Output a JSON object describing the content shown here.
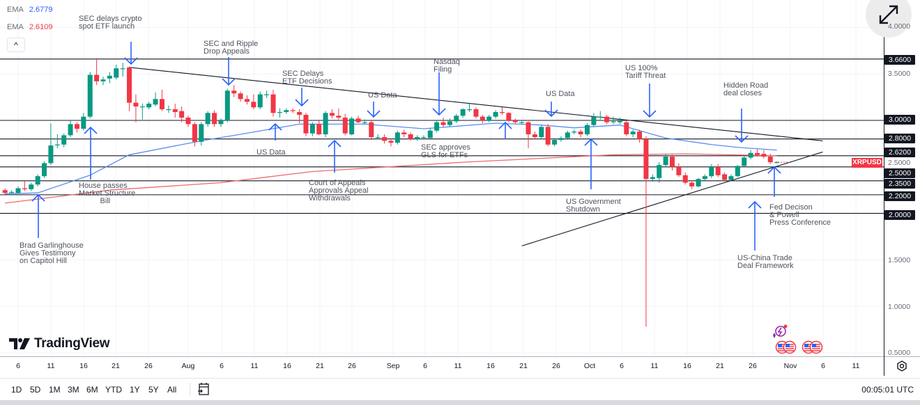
{
  "symbol": "XRPUSD",
  "legend": [
    {
      "label": "EMA",
      "value": "2.6779",
      "color": "#2962ff"
    },
    {
      "label": "EMA",
      "value": "2.6109",
      "color": "#f23645"
    }
  ],
  "collapse_label": "^",
  "logo_text": "TradingView",
  "colors": {
    "up": "#089981",
    "down": "#f23645",
    "ema_fast": "#5b8def",
    "ema_slow": "#f06a6a",
    "arrow": "#2962ff",
    "level": "#131722"
  },
  "price_axis": {
    "gray_ticks": [
      "4.0000",
      "3.5000",
      "2.5000",
      "1.5000",
      "1.0000",
      "0.5000"
    ],
    "level_labels": [
      "3.6600",
      "3.0000",
      "2.8000",
      "2.6200",
      "2.5000",
      "2.3500",
      "2.2000",
      "2.0000"
    ]
  },
  "time_axis": [
    "6",
    "11",
    "16",
    "21",
    "26",
    "Aug",
    "6",
    "11",
    "16",
    "21",
    "26",
    "Sep",
    "6",
    "11",
    "16",
    "21",
    "26",
    "Oct",
    "6",
    "11",
    "16",
    "21",
    "26",
    "Nov",
    "6",
    "11"
  ],
  "annotations": [
    {
      "text": "SEC delays crypto\nspot ETF launch",
      "arrow": "down"
    },
    {
      "text": "SEC and Ripple\nDrop Appeals",
      "arrow": "down"
    },
    {
      "text": "SEC Delays\nETF Decisions",
      "arrow": "down"
    },
    {
      "text": "US Data",
      "arrow": "down"
    },
    {
      "text": "Nasdaq\nFiling",
      "arrow": "down"
    },
    {
      "text": "US Data",
      "arrow": "down"
    },
    {
      "text": "US 100%\nTariff Threat",
      "arrow": "down"
    },
    {
      "text": "Hidden Road\ndeal closes",
      "arrow": "down"
    },
    {
      "text": "US Data",
      "arrow": "up"
    },
    {
      "text": "House passes\nMarket Structure\n          Bill",
      "arrow": "up"
    },
    {
      "text": "Brad Garlinghouse\nGives Testimony\non Capitol Hill",
      "arrow": "up"
    },
    {
      "text": "Court of Appeals\nApprovals Appeal\nWithdrawals",
      "arrow": "up"
    },
    {
      "text": "SEC approves\nGLS for ETFs",
      "arrow": "up"
    },
    {
      "text": "US Government\nShutdown",
      "arrow": "up"
    },
    {
      "text": "US-China Trade\nDeal Framework",
      "arrow": "up"
    },
    {
      "text": "Fed Decison\n& Powell\nPress Conference",
      "arrow": "up"
    }
  ],
  "range_buttons": [
    "1D",
    "5D",
    "1M",
    "3M",
    "6M",
    "YTD",
    "1Y",
    "5Y",
    "All"
  ],
  "clock": "00:05:01 UTC",
  "chart_data": {
    "type": "candlestick",
    "symbol": "XRPUSD",
    "interval": "1D",
    "ylim": [
      0.5,
      4.0
    ],
    "grid": true,
    "candle_fields": [
      "date",
      "open",
      "high",
      "low",
      "close"
    ],
    "candles": [
      [
        "Jul 4",
        2.25,
        2.27,
        2.2,
        2.22
      ],
      [
        "Jul 5",
        2.23,
        2.25,
        2.21,
        2.23
      ],
      [
        "Jul 6",
        2.22,
        2.29,
        2.21,
        2.27
      ],
      [
        "Jul 7",
        2.27,
        2.35,
        2.24,
        2.26
      ],
      [
        "Jul 8",
        2.26,
        2.33,
        2.24,
        2.31
      ],
      [
        "Jul 9",
        2.31,
        2.42,
        2.29,
        2.4
      ],
      [
        "Jul 10",
        2.4,
        2.56,
        2.38,
        2.54
      ],
      [
        "Jul 11",
        2.54,
        2.97,
        2.52,
        2.73
      ],
      [
        "Jul 12",
        2.74,
        2.85,
        2.7,
        2.74
      ],
      [
        "Jul 13",
        2.74,
        2.86,
        2.71,
        2.84
      ],
      [
        "Jul 14",
        2.84,
        3.0,
        2.82,
        2.96
      ],
      [
        "Jul 15",
        2.96,
        2.98,
        2.87,
        2.91
      ],
      [
        "Jul 16",
        2.91,
        3.08,
        2.89,
        3.04
      ],
      [
        "Jul 17",
        3.04,
        3.52,
        3.02,
        3.49
      ],
      [
        "Jul 18",
        3.49,
        3.67,
        3.38,
        3.42
      ],
      [
        "Jul 19",
        3.42,
        3.47,
        3.38,
        3.44
      ],
      [
        "Jul 20",
        3.45,
        3.52,
        3.4,
        3.48
      ],
      [
        "Jul 21",
        3.46,
        3.6,
        3.44,
        3.56
      ],
      [
        "Jul 22",
        3.56,
        3.62,
        3.47,
        3.56
      ],
      [
        "Jul 23",
        3.57,
        3.58,
        3.1,
        3.19
      ],
      [
        "Jul 24",
        3.19,
        3.28,
        2.98,
        3.15
      ],
      [
        "Jul 25",
        3.15,
        3.18,
        3.01,
        3.15
      ],
      [
        "Jul 26",
        3.14,
        3.2,
        3.12,
        3.18
      ],
      [
        "Jul 27",
        3.17,
        3.3,
        3.15,
        3.23
      ],
      [
        "Jul 28",
        3.23,
        3.33,
        3.1,
        3.12
      ],
      [
        "Jul 29",
        3.12,
        3.16,
        3.08,
        3.12
      ],
      [
        "Jul 30",
        3.12,
        3.18,
        3.03,
        3.09
      ],
      [
        "Jul 31",
        3.1,
        3.15,
        2.98,
        3.03
      ],
      [
        "Aug 1",
        3.03,
        3.05,
        2.93,
        2.96
      ],
      [
        "Aug 2",
        2.96,
        2.98,
        2.72,
        2.77
      ],
      [
        "Aug 3",
        2.77,
        2.98,
        2.73,
        2.96
      ],
      [
        "Aug 4",
        2.96,
        3.1,
        2.93,
        3.08
      ],
      [
        "Aug 5",
        3.08,
        3.11,
        2.93,
        2.96
      ],
      [
        "Aug 6",
        2.96,
        3.02,
        2.93,
        3.0
      ],
      [
        "Aug 7",
        3.0,
        3.34,
        2.98,
        3.32
      ],
      [
        "Aug 8",
        3.32,
        3.38,
        3.25,
        3.29
      ],
      [
        "Aug 9",
        3.29,
        3.31,
        3.2,
        3.23
      ],
      [
        "Aug 10",
        3.23,
        3.27,
        3.17,
        3.2
      ],
      [
        "Aug 11",
        3.2,
        3.28,
        3.12,
        3.14
      ],
      [
        "Aug 12",
        3.14,
        3.31,
        3.12,
        3.28
      ],
      [
        "Aug 13",
        3.28,
        3.32,
        3.24,
        3.28
      ],
      [
        "Aug 14",
        3.28,
        3.33,
        3.04,
        3.08
      ],
      [
        "Aug 15",
        3.09,
        3.13,
        3.03,
        3.09
      ],
      [
        "Aug 16",
        3.09,
        3.13,
        3.07,
        3.11
      ],
      [
        "Aug 17",
        3.11,
        3.13,
        3.08,
        3.1
      ],
      [
        "Aug 18",
        3.09,
        3.12,
        2.97,
        3.06
      ],
      [
        "Aug 19",
        3.06,
        3.08,
        2.83,
        2.86
      ],
      [
        "Aug 20",
        2.86,
        2.98,
        2.83,
        2.96
      ],
      [
        "Aug 21",
        2.96,
        3.0,
        2.84,
        2.85
      ],
      [
        "Aug 22",
        2.85,
        3.1,
        2.82,
        3.08
      ],
      [
        "Aug 23",
        3.08,
        3.12,
        3.02,
        3.05
      ],
      [
        "Aug 24",
        3.05,
        3.13,
        3.01,
        3.03
      ],
      [
        "Aug 25",
        3.03,
        3.07,
        2.84,
        2.86
      ],
      [
        "Aug 26",
        2.85,
        3.04,
        2.84,
        3.02
      ],
      [
        "Aug 27",
        3.02,
        3.05,
        2.97,
        2.98
      ],
      [
        "Aug 28",
        2.98,
        3.01,
        2.96,
        2.98
      ],
      [
        "Aug 29",
        2.98,
        3.0,
        2.79,
        2.82
      ],
      [
        "Aug 30",
        2.82,
        2.85,
        2.8,
        2.82
      ],
      [
        "Aug 31",
        2.82,
        2.85,
        2.75,
        2.78
      ],
      [
        "Sep 1",
        2.78,
        2.8,
        2.72,
        2.76
      ],
      [
        "Sep 2",
        2.76,
        2.89,
        2.74,
        2.87
      ],
      [
        "Sep 3",
        2.87,
        2.9,
        2.82,
        2.85
      ],
      [
        "Sep 4",
        2.85,
        2.87,
        2.78,
        2.8
      ],
      [
        "Sep 5",
        2.8,
        2.84,
        2.78,
        2.82
      ],
      [
        "Sep 6",
        2.82,
        2.84,
        2.8,
        2.82
      ],
      [
        "Sep 7",
        2.81,
        2.92,
        2.8,
        2.89
      ],
      [
        "Sep 8",
        2.89,
        3.0,
        2.87,
        2.98
      ],
      [
        "Sep 9",
        2.98,
        3.03,
        2.93,
        2.95
      ],
      [
        "Sep 10",
        2.95,
        3.02,
        2.93,
        2.99
      ],
      [
        "Sep 11",
        2.99,
        3.07,
        2.97,
        3.05
      ],
      [
        "Sep 12",
        3.05,
        3.13,
        3.03,
        3.12
      ],
      [
        "Sep 13",
        3.12,
        3.18,
        3.09,
        3.12
      ],
      [
        "Sep 14",
        3.12,
        3.14,
        3.02,
        3.04
      ],
      [
        "Sep 15",
        3.04,
        3.06,
        2.97,
        3.0
      ],
      [
        "Sep 16",
        3.0,
        3.06,
        2.98,
        3.04
      ],
      [
        "Sep 17",
        3.04,
        3.11,
        3.02,
        3.09
      ],
      [
        "Sep 18",
        3.09,
        3.14,
        3.06,
        3.08
      ],
      [
        "Sep 19",
        3.08,
        3.09,
        2.98,
        3.0
      ],
      [
        "Sep 20",
        3.0,
        3.02,
        2.96,
        2.98
      ],
      [
        "Sep 21",
        2.98,
        3.0,
        2.96,
        2.98
      ],
      [
        "Sep 22",
        2.98,
        2.99,
        2.7,
        2.85
      ],
      [
        "Sep 23",
        2.85,
        2.88,
        2.8,
        2.82
      ],
      [
        "Sep 24",
        2.82,
        2.95,
        2.8,
        2.93
      ],
      [
        "Sep 25",
        2.93,
        2.96,
        2.72,
        2.74
      ],
      [
        "Sep 26",
        2.74,
        2.81,
        2.72,
        2.79
      ],
      [
        "Sep 27",
        2.79,
        2.83,
        2.77,
        2.81
      ],
      [
        "Sep 28",
        2.81,
        2.89,
        2.79,
        2.87
      ],
      [
        "Sep 29",
        2.87,
        2.9,
        2.85,
        2.88
      ],
      [
        "Sep 30",
        2.88,
        2.9,
        2.82,
        2.85
      ],
      [
        "Oct 1",
        2.85,
        2.97,
        2.83,
        2.95
      ],
      [
        "Oct 2",
        2.95,
        3.08,
        2.93,
        3.04
      ],
      [
        "Oct 3",
        3.04,
        3.1,
        3.01,
        3.04
      ],
      [
        "Oct 4",
        3.04,
        3.06,
        2.96,
        2.98
      ],
      [
        "Oct 5",
        2.98,
        3.04,
        2.96,
        2.99
      ],
      [
        "Oct 6",
        2.98,
        3.03,
        2.96,
        3.0
      ],
      [
        "Oct 7",
        2.98,
        3.0,
        2.83,
        2.85
      ],
      [
        "Oct 8",
        2.85,
        2.9,
        2.82,
        2.88
      ],
      [
        "Oct 9",
        2.88,
        2.9,
        2.76,
        2.8
      ],
      [
        "Oct 10",
        2.8,
        2.83,
        0.78,
        2.37
      ],
      [
        "Oct 11",
        2.37,
        2.42,
        2.34,
        2.39
      ],
      [
        "Oct 12",
        2.38,
        2.55,
        2.33,
        2.52
      ],
      [
        "Oct 13",
        2.52,
        2.64,
        2.5,
        2.61
      ],
      [
        "Oct 14",
        2.61,
        2.63,
        2.46,
        2.5
      ],
      [
        "Oct 15",
        2.5,
        2.54,
        2.39,
        2.41
      ],
      [
        "Oct 16",
        2.41,
        2.44,
        2.31,
        2.33
      ],
      [
        "Oct 17",
        2.33,
        2.35,
        2.26,
        2.29
      ],
      [
        "Oct 18",
        2.29,
        2.38,
        2.28,
        2.37
      ],
      [
        "Oct 19",
        2.37,
        2.42,
        2.35,
        2.4
      ],
      [
        "Oct 20",
        2.4,
        2.53,
        2.38,
        2.5
      ],
      [
        "Oct 21",
        2.5,
        2.53,
        2.39,
        2.41
      ],
      [
        "Oct 22",
        2.42,
        2.44,
        2.35,
        2.36
      ],
      [
        "Oct 23",
        2.36,
        2.42,
        2.35,
        2.4
      ],
      [
        "Oct 24",
        2.4,
        2.52,
        2.39,
        2.51
      ],
      [
        "Oct 25",
        2.51,
        2.62,
        2.5,
        2.6
      ],
      [
        "Oct 26",
        2.6,
        2.68,
        2.58,
        2.65
      ],
      [
        "Oct 27",
        2.65,
        2.69,
        2.61,
        2.63
      ],
      [
        "Oct 28",
        2.64,
        2.68,
        2.59,
        2.61
      ],
      [
        "Oct 29",
        2.61,
        2.64,
        2.53,
        2.55
      ],
      [
        "Oct 30",
        2.55,
        2.56,
        2.54,
        2.55
      ]
    ],
    "ema_fast": [
      [
        "Jul 4",
        2.21
      ],
      [
        "Jul 20",
        2.22
      ],
      [
        "Jul 31",
        2.41
      ],
      [
        "Aug 6",
        2.63
      ],
      [
        "Aug 20",
        2.78
      ],
      [
        "Aug 30",
        2.85
      ],
      [
        "Sep 14",
        2.96
      ],
      [
        "Sep 20",
        2.96
      ],
      [
        "Sep 30",
        2.91
      ],
      [
        "Oct 10",
        2.97
      ],
      [
        "Oct 20",
        2.95
      ],
      [
        "Oct 27",
        2.92
      ],
      [
        "Oct 30",
        2.95
      ],
      [
        "Oct 4",
        2.95
      ]
    ],
    "ema_fast_clean": [
      [
        "Jul 4",
        2.21
      ],
      [
        "Jul 9",
        2.22
      ],
      [
        "Jul 17",
        2.41
      ],
      [
        "Jul 23",
        2.63
      ],
      [
        "Aug 3",
        2.78
      ],
      [
        "Aug 9",
        2.85
      ],
      [
        "Aug 18",
        2.96
      ],
      [
        "Aug 28",
        2.96
      ],
      [
        "Sep 6",
        2.91
      ],
      [
        "Sep 17",
        2.97
      ],
      [
        "Sep 24",
        2.95
      ],
      [
        "Sep 29",
        2.92
      ],
      [
        "Oct 6",
        2.95
      ],
      [
        "Oct 13",
        2.81
      ],
      [
        "Oct 20",
        2.74
      ],
      [
        "Oct 24",
        2.71
      ],
      [
        "Oct 30",
        2.68
      ]
    ],
    "ema_slow": [
      [
        "Jul 4",
        2.11
      ],
      [
        "Jul 20",
        2.25
      ],
      [
        "Aug 6",
        2.33
      ],
      [
        "Aug 20",
        2.45
      ],
      [
        "Sep 12",
        2.55
      ],
      [
        "Oct 5",
        2.63
      ],
      [
        "Oct 16",
        2.64
      ],
      [
        "Oct 30",
        2.62
      ]
    ],
    "horizontal_levels": [
      3.66,
      3.0,
      2.8,
      2.62,
      2.5,
      2.35,
      2.2,
      2.0
    ],
    "trendlines": [
      {
        "from": [
          "Jul 23",
          3.57
        ],
        "to": [
          "Nov 6",
          2.78
        ]
      },
      {
        "from": [
          "Sep 21",
          1.65
        ],
        "to": [
          "Nov 6",
          2.66
        ]
      }
    ],
    "last_price_label": "XRPUSD"
  }
}
